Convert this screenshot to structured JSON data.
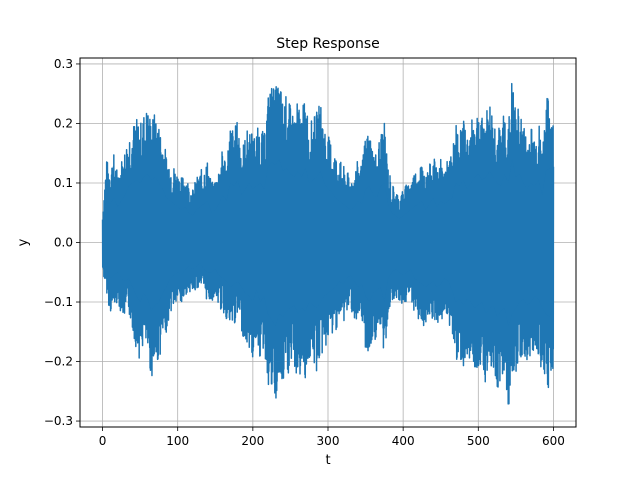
{
  "chart_data": {
    "type": "line",
    "title": "Step Response",
    "xlabel": "t",
    "ylabel": "y",
    "xlim": [
      -30,
      630
    ],
    "ylim": [
      -0.31,
      0.31
    ],
    "xticks": [
      0,
      100,
      200,
      300,
      400,
      500,
      600
    ],
    "yticks": [
      -0.3,
      -0.2,
      -0.1,
      0.0,
      0.1,
      0.2,
      0.3
    ],
    "xtick_labels": [
      "0",
      "100",
      "200",
      "300",
      "400",
      "500",
      "600"
    ],
    "ytick_labels": [
      "−0.3",
      "−0.2",
      "−0.1",
      "0.0",
      "0.1",
      "0.2",
      "0.3"
    ],
    "grid": true,
    "series_color": "#1f77b4",
    "series": [
      {
        "x": [
          0,
          5,
          10,
          15,
          20,
          25,
          30,
          35,
          40,
          45,
          50,
          55,
          60,
          65,
          70,
          75,
          80,
          85,
          90,
          95,
          100,
          105,
          110,
          115,
          120,
          125,
          130,
          135,
          140,
          145,
          150,
          155,
          160,
          165,
          170,
          175,
          180,
          185,
          190,
          195,
          200,
          205,
          210,
          215,
          220,
          225,
          230,
          235,
          240,
          245,
          250,
          255,
          260,
          265,
          270,
          275,
          280,
          285,
          290,
          295,
          300,
          305,
          310,
          315,
          320,
          325,
          330,
          335,
          340,
          345,
          350,
          355,
          360,
          365,
          370,
          375,
          380,
          385,
          390,
          395,
          400,
          405,
          410,
          415,
          420,
          425,
          430,
          435,
          440,
          445,
          450,
          455,
          460,
          465,
          470,
          475,
          480,
          485,
          490,
          495,
          500,
          505,
          510,
          515,
          520,
          525,
          530,
          535,
          540,
          545,
          550,
          555,
          560,
          565,
          570,
          575,
          580,
          585,
          590,
          595,
          600
        ],
        "upper": [
          0.05,
          0.14,
          0.13,
          0.15,
          0.12,
          0.14,
          0.16,
          0.19,
          0.2,
          0.21,
          0.2,
          0.22,
          0.23,
          0.21,
          0.22,
          0.2,
          0.18,
          0.15,
          0.14,
          0.13,
          0.12,
          0.11,
          0.12,
          0.1,
          0.09,
          0.11,
          0.12,
          0.13,
          0.14,
          0.1,
          0.11,
          0.13,
          0.16,
          0.14,
          0.2,
          0.19,
          0.21,
          0.16,
          0.18,
          0.2,
          0.18,
          0.19,
          0.2,
          0.18,
          0.25,
          0.27,
          0.26,
          0.28,
          0.24,
          0.25,
          0.23,
          0.22,
          0.24,
          0.22,
          0.25,
          0.2,
          0.21,
          0.22,
          0.24,
          0.2,
          0.18,
          0.17,
          0.15,
          0.14,
          0.13,
          0.12,
          0.11,
          0.12,
          0.14,
          0.13,
          0.18,
          0.19,
          0.16,
          0.15,
          0.19,
          0.2,
          0.13,
          0.1,
          0.09,
          0.08,
          0.09,
          0.1,
          0.11,
          0.12,
          0.13,
          0.14,
          0.11,
          0.13,
          0.15,
          0.12,
          0.14,
          0.13,
          0.14,
          0.15,
          0.2,
          0.19,
          0.21,
          0.18,
          0.2,
          0.22,
          0.23,
          0.21,
          0.22,
          0.24,
          0.22,
          0.2,
          0.19,
          0.23,
          0.2,
          0.28,
          0.22,
          0.23,
          0.2,
          0.18,
          0.2,
          0.19,
          0.21,
          0.16,
          0.24,
          0.25,
          0.2
        ],
        "lower": [
          -0.05,
          -0.08,
          -0.12,
          -0.11,
          -0.1,
          -0.12,
          -0.13,
          -0.12,
          -0.15,
          -0.18,
          -0.2,
          -0.17,
          -0.19,
          -0.23,
          -0.21,
          -0.2,
          -0.17,
          -0.15,
          -0.12,
          -0.11,
          -0.1,
          -0.11,
          -0.09,
          -0.08,
          -0.09,
          -0.08,
          -0.07,
          -0.09,
          -0.1,
          -0.1,
          -0.09,
          -0.11,
          -0.12,
          -0.13,
          -0.15,
          -0.14,
          -0.13,
          -0.15,
          -0.17,
          -0.18,
          -0.2,
          -0.16,
          -0.2,
          -0.18,
          -0.24,
          -0.26,
          -0.28,
          -0.24,
          -0.25,
          -0.23,
          -0.22,
          -0.21,
          -0.24,
          -0.22,
          -0.23,
          -0.2,
          -0.21,
          -0.22,
          -0.2,
          -0.18,
          -0.17,
          -0.16,
          -0.15,
          -0.13,
          -0.14,
          -0.12,
          -0.11,
          -0.13,
          -0.15,
          -0.14,
          -0.18,
          -0.2,
          -0.17,
          -0.16,
          -0.15,
          -0.2,
          -0.12,
          -0.1,
          -0.09,
          -0.1,
          -0.11,
          -0.1,
          -0.09,
          -0.12,
          -0.13,
          -0.14,
          -0.15,
          -0.14,
          -0.13,
          -0.15,
          -0.14,
          -0.12,
          -0.13,
          -0.16,
          -0.2,
          -0.19,
          -0.21,
          -0.19,
          -0.2,
          -0.22,
          -0.21,
          -0.2,
          -0.24,
          -0.22,
          -0.21,
          -0.25,
          -0.23,
          -0.22,
          -0.28,
          -0.24,
          -0.22,
          -0.2,
          -0.19,
          -0.21,
          -0.2,
          -0.18,
          -0.19,
          -0.22,
          -0.24,
          -0.25,
          -0.21
        ]
      }
    ]
  }
}
